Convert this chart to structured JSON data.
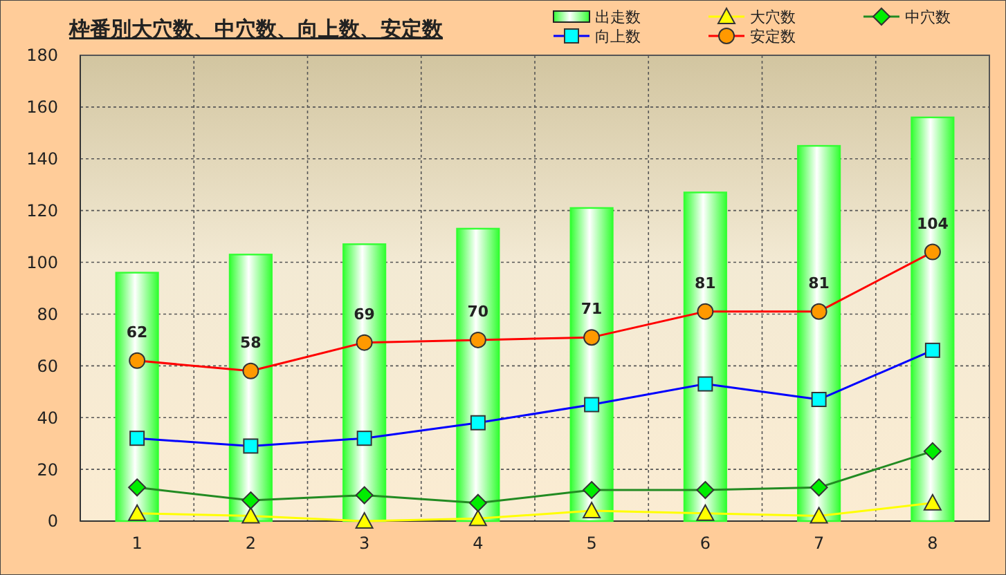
{
  "chart_data": {
    "type": "bar",
    "title": "枠番別大穴数、中穴数、向上数、安定数",
    "categories": [
      "1",
      "2",
      "3",
      "4",
      "5",
      "6",
      "7",
      "8"
    ],
    "series": [
      {
        "name": "出走数",
        "color": "#33ff33",
        "values": [
          96,
          103,
          107,
          113,
          121,
          127,
          145,
          156
        ]
      },
      {
        "name": "大穴数",
        "type": "line",
        "color": "#ffff00",
        "marker": "triangle",
        "values": [
          3,
          2,
          0,
          1,
          4,
          3,
          2,
          7
        ]
      },
      {
        "name": "中穴数",
        "type": "line",
        "color": "#228b22",
        "marker": "diamond",
        "values": [
          13,
          8,
          10,
          7,
          12,
          12,
          13,
          27
        ]
      },
      {
        "name": "向上数",
        "type": "line",
        "color": "#0000ff",
        "marker": "square",
        "values": [
          32,
          29,
          32,
          38,
          45,
          53,
          47,
          66
        ]
      },
      {
        "name": "安定数",
        "type": "line",
        "color": "#ff0000",
        "marker": "circle",
        "values": [
          62,
          58,
          69,
          70,
          71,
          81,
          81,
          104
        ],
        "value_labels": [
          "62",
          "58",
          "69",
          "70",
          "71",
          "81",
          "81",
          "104"
        ]
      }
    ],
    "ylim": [
      0,
      180
    ],
    "yticks": [
      0,
      20,
      40,
      60,
      80,
      100,
      120,
      140,
      160,
      180
    ],
    "grid": true,
    "legend": "top right",
    "line_style": "solid"
  }
}
